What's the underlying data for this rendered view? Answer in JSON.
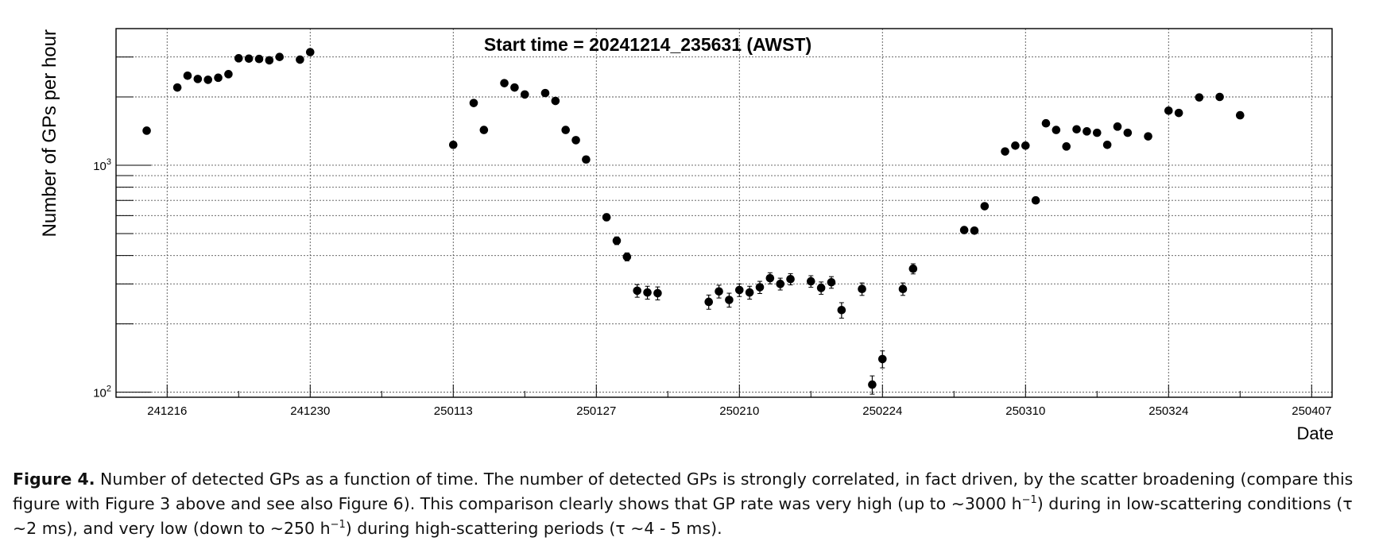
{
  "chart_data": {
    "type": "scatter",
    "title": "Start time = 20241214_235631 (AWST)",
    "xlabel": "Date",
    "ylabel": "Number of GPs per hour",
    "yscale": "log",
    "ylim": [
      95,
      4000
    ],
    "xlim": [
      "2024-12-11",
      "2025-04-09"
    ],
    "grid": true,
    "error_bars": true,
    "x_ticks": [
      "241216",
      "241230",
      "250113",
      "250127",
      "250210",
      "250224",
      "250310",
      "250324",
      "250407"
    ],
    "y_ticks": [
      {
        "base": "10",
        "exp": "2",
        "value": 100
      },
      {
        "base": "10",
        "exp": "3",
        "value": 1000
      }
    ],
    "series": [
      {
        "marker_color": "#000000",
        "points": [
          {
            "x": "2024-12-14",
            "y": 1420,
            "err": 40
          },
          {
            "x": "2024-12-17",
            "y": 2200,
            "err": 60
          },
          {
            "x": "2024-12-18",
            "y": 2480,
            "err": 60
          },
          {
            "x": "2024-12-19",
            "y": 2400,
            "err": 60
          },
          {
            "x": "2024-12-20",
            "y": 2380,
            "err": 60
          },
          {
            "x": "2024-12-21",
            "y": 2430,
            "err": 60
          },
          {
            "x": "2024-12-22",
            "y": 2520,
            "err": 60
          },
          {
            "x": "2024-12-23",
            "y": 2960,
            "err": 70
          },
          {
            "x": "2024-12-24",
            "y": 2950,
            "err": 70
          },
          {
            "x": "2024-12-25",
            "y": 2940,
            "err": 70
          },
          {
            "x": "2024-12-26",
            "y": 2900,
            "err": 70
          },
          {
            "x": "2024-12-27",
            "y": 3000,
            "err": 70
          },
          {
            "x": "2024-12-29",
            "y": 2920,
            "err": 70
          },
          {
            "x": "2024-12-30",
            "y": 3150,
            "err": 70
          },
          {
            "x": "2025-01-13",
            "y": 1230,
            "err": 40
          },
          {
            "x": "2025-01-15",
            "y": 1880,
            "err": 50
          },
          {
            "x": "2025-01-16",
            "y": 1430,
            "err": 40
          },
          {
            "x": "2025-01-18",
            "y": 2300,
            "err": 60
          },
          {
            "x": "2025-01-19",
            "y": 2200,
            "err": 60
          },
          {
            "x": "2025-01-20",
            "y": 2050,
            "err": 55
          },
          {
            "x": "2025-01-22",
            "y": 2080,
            "err": 55
          },
          {
            "x": "2025-01-23",
            "y": 1920,
            "err": 50
          },
          {
            "x": "2025-01-24",
            "y": 1430,
            "err": 40
          },
          {
            "x": "2025-01-25",
            "y": 1290,
            "err": 40
          },
          {
            "x": "2025-01-26",
            "y": 1060,
            "err": 35
          },
          {
            "x": "2025-01-28",
            "y": 590,
            "err": 20
          },
          {
            "x": "2025-01-29",
            "y": 465,
            "err": 18
          },
          {
            "x": "2025-01-30",
            "y": 395,
            "err": 16
          },
          {
            "x": "2025-01-31",
            "y": 280,
            "err": 18
          },
          {
            "x": "2025-02-01",
            "y": 275,
            "err": 18
          },
          {
            "x": "2025-02-02",
            "y": 273,
            "err": 18
          },
          {
            "x": "2025-02-07",
            "y": 250,
            "err": 18
          },
          {
            "x": "2025-02-08",
            "y": 278,
            "err": 18
          },
          {
            "x": "2025-02-09",
            "y": 255,
            "err": 18
          },
          {
            "x": "2025-02-10",
            "y": 282,
            "err": 18
          },
          {
            "x": "2025-02-11",
            "y": 275,
            "err": 18
          },
          {
            "x": "2025-02-12",
            "y": 290,
            "err": 18
          },
          {
            "x": "2025-02-13",
            "y": 318,
            "err": 18
          },
          {
            "x": "2025-02-14",
            "y": 300,
            "err": 18
          },
          {
            "x": "2025-02-15",
            "y": 315,
            "err": 18
          },
          {
            "x": "2025-02-17",
            "y": 308,
            "err": 18
          },
          {
            "x": "2025-02-18",
            "y": 288,
            "err": 18
          },
          {
            "x": "2025-02-19",
            "y": 305,
            "err": 18
          },
          {
            "x": "2025-02-20",
            "y": 230,
            "err": 18
          },
          {
            "x": "2025-02-22",
            "y": 285,
            "err": 18
          },
          {
            "x": "2025-02-23",
            "y": 108,
            "err": 10
          },
          {
            "x": "2025-02-24",
            "y": 140,
            "err": 12
          },
          {
            "x": "2025-02-26",
            "y": 285,
            "err": 18
          },
          {
            "x": "2025-02-27",
            "y": 350,
            "err": 18
          },
          {
            "x": "2025-03-04",
            "y": 518,
            "err": 15
          },
          {
            "x": "2025-03-05",
            "y": 515,
            "err": 15
          },
          {
            "x": "2025-03-06",
            "y": 660,
            "err": 20
          },
          {
            "x": "2025-03-08",
            "y": 1150,
            "err": 35
          },
          {
            "x": "2025-03-09",
            "y": 1220,
            "err": 35
          },
          {
            "x": "2025-03-10",
            "y": 1220,
            "err": 35
          },
          {
            "x": "2025-03-11",
            "y": 700,
            "err": 20
          },
          {
            "x": "2025-03-12",
            "y": 1530,
            "err": 45
          },
          {
            "x": "2025-03-13",
            "y": 1430,
            "err": 40
          },
          {
            "x": "2025-03-14",
            "y": 1210,
            "err": 35
          },
          {
            "x": "2025-03-15",
            "y": 1440,
            "err": 40
          },
          {
            "x": "2025-03-16",
            "y": 1410,
            "err": 40
          },
          {
            "x": "2025-03-17",
            "y": 1390,
            "err": 40
          },
          {
            "x": "2025-03-18",
            "y": 1230,
            "err": 35
          },
          {
            "x": "2025-03-19",
            "y": 1480,
            "err": 40
          },
          {
            "x": "2025-03-20",
            "y": 1390,
            "err": 40
          },
          {
            "x": "2025-03-22",
            "y": 1340,
            "err": 40
          },
          {
            "x": "2025-03-24",
            "y": 1740,
            "err": 50
          },
          {
            "x": "2025-03-25",
            "y": 1700,
            "err": 50
          },
          {
            "x": "2025-03-27",
            "y": 1990,
            "err": 55
          },
          {
            "x": "2025-03-29",
            "y": 2000,
            "err": 55
          },
          {
            "x": "2025-03-31",
            "y": 1660,
            "err": 50
          }
        ]
      }
    ]
  },
  "caption": {
    "label": "Figure 4.",
    "part1": " Number of detected GPs as a function of time. The number of detected GPs is strongly correlated, in fact driven, by the scatter broadening (compare this figure with Figure 3 above and see also Figure 6). This comparison clearly shows that GP rate was very high (up to ∼3000 h",
    "sup1": "−1",
    "part2": ") during in low-scattering conditions (τ ∼2 ms), and very low (down to ∼250 h",
    "sup2": "−1",
    "part3": ") during high-scattering periods (τ ∼4 - 5 ms)."
  }
}
